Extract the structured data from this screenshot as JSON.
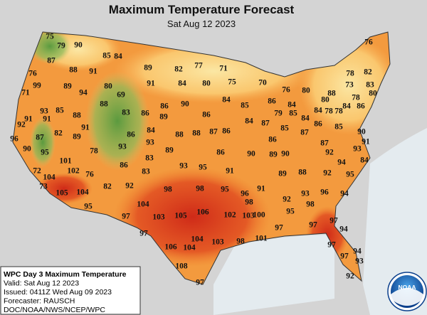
{
  "header": {
    "title": "Maximum Temperature Forecast",
    "subtitle": "Sat Aug 12 2023"
  },
  "map": {
    "temperatures": [
      75,
      79,
      90,
      85,
      84,
      76,
      87,
      88,
      91,
      89,
      82,
      77,
      71,
      78,
      82,
      76,
      99,
      89,
      80,
      91,
      84,
      80,
      75,
      70,
      76,
      73,
      83,
      71,
      94,
      69,
      80,
      88,
      78,
      80,
      88,
      86,
      90,
      84,
      85,
      86,
      84,
      80,
      93,
      85,
      88,
      83,
      86,
      89,
      86,
      79,
      85,
      84,
      84,
      78,
      78,
      84,
      86,
      91,
      91,
      92,
      91,
      84,
      88,
      88,
      87,
      86,
      84,
      87,
      85,
      87,
      86,
      85,
      90,
      96,
      87,
      82,
      89,
      86,
      86,
      87,
      91,
      90,
      95,
      78,
      93,
      93,
      89,
      86,
      90,
      89,
      90,
      92,
      93,
      101,
      86,
      83,
      93,
      95,
      91,
      94,
      84,
      72,
      104,
      102,
      76,
      83,
      89,
      88,
      92,
      95,
      73,
      82,
      92,
      98,
      98,
      95,
      96,
      91,
      92,
      93,
      96,
      94,
      105,
      104,
      95,
      104,
      98,
      100,
      95,
      98,
      97,
      103,
      105,
      106,
      102,
      103,
      97,
      97,
      97,
      104,
      103,
      98,
      101,
      97,
      94,
      106,
      104,
      97,
      94,
      97,
      93,
      92,
      108,
      97
    ]
  },
  "info_box": {
    "lines": [
      "WPC Day 3 Maximum Temperature",
      "Valid: Sat Aug 12 2023",
      "Issued: 0411Z Wed Aug 09 2023",
      "Forecaster: RAUSCH",
      "DOC/NOAA/NWS/NCEP/WPC"
    ]
  },
  "logo": {
    "label": "NOAA"
  }
}
